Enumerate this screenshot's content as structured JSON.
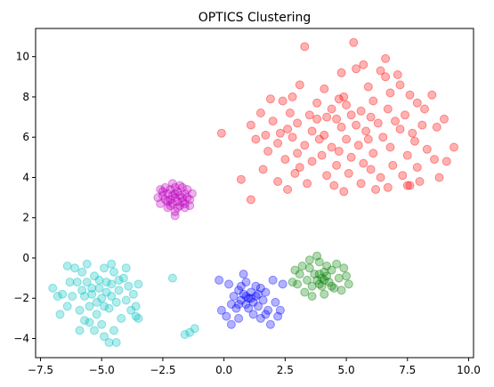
{
  "chart_data": {
    "type": "scatter",
    "title": "OPTICS Clustering",
    "xlabel": "",
    "ylabel": "",
    "xlim": [
      -7.7,
      10.2
    ],
    "ylim": [
      -4.95,
      11.4
    ],
    "xticks": [
      -7.5,
      -5.0,
      -2.5,
      0.0,
      2.5,
      5.0,
      7.5,
      10.0
    ],
    "xtick_labels": [
      "−7.5",
      "−5.0",
      "−2.5",
      "0.0",
      "2.5",
      "5.0",
      "7.5",
      "10.0"
    ],
    "yticks": [
      -4,
      -2,
      0,
      2,
      4,
      6,
      8,
      10
    ],
    "ytick_labels": [
      "−4",
      "−2",
      "0",
      "2",
      "4",
      "6",
      "8",
      "10"
    ],
    "grid": false,
    "legend": "none",
    "marker_alpha": 0.3,
    "series": [
      {
        "color": "#ff0000",
        "points": [
          [
            5.3,
            10.7
          ],
          [
            3.3,
            10.5
          ],
          [
            6.6,
            9.9
          ],
          [
            5.7,
            9.6
          ],
          [
            5.4,
            9.4
          ],
          [
            4.8,
            9.2
          ],
          [
            7.1,
            9.1
          ],
          [
            6.4,
            9.3
          ],
          [
            3.1,
            8.6
          ],
          [
            4.1,
            8.4
          ],
          [
            5.9,
            8.5
          ],
          [
            7.2,
            8.6
          ],
          [
            7.6,
            8.1
          ],
          [
            8.5,
            8.1
          ],
          [
            4.7,
            7.9
          ],
          [
            6.1,
            7.8
          ],
          [
            7.9,
            7.7
          ],
          [
            1.9,
            7.9
          ],
          [
            2.4,
            7.8
          ],
          [
            3.8,
            7.7
          ],
          [
            4.4,
            7.4
          ],
          [
            5.6,
            7.3
          ],
          [
            6.7,
            7.4
          ],
          [
            8.2,
            7.4
          ],
          [
            1.5,
            7.2
          ],
          [
            2.7,
            7.2
          ],
          [
            3.5,
            7.1
          ],
          [
            4.2,
            7.0
          ],
          [
            5.2,
            7.1
          ],
          [
            6.0,
            7.0
          ],
          [
            7.4,
            7.1
          ],
          [
            9.0,
            6.9
          ],
          [
            2.0,
            6.8
          ],
          [
            3.0,
            6.7
          ],
          [
            4.6,
            6.9
          ],
          [
            5.4,
            6.6
          ],
          [
            6.3,
            6.7
          ],
          [
            8.1,
            6.6
          ],
          [
            1.1,
            6.6
          ],
          [
            2.6,
            6.4
          ],
          [
            3.6,
            6.3
          ],
          [
            4.8,
            6.5
          ],
          [
            5.8,
            6.3
          ],
          [
            7.2,
            6.4
          ],
          [
            8.7,
            6.5
          ],
          [
            1.7,
            6.1
          ],
          [
            2.8,
            6.0
          ],
          [
            4.1,
            6.1
          ],
          [
            5.0,
            5.9
          ],
          [
            6.5,
            6.0
          ],
          [
            7.8,
            5.8
          ],
          [
            -0.1,
            6.2
          ],
          [
            1.3,
            5.9
          ],
          [
            2.2,
            5.7
          ],
          [
            3.3,
            5.6
          ],
          [
            4.4,
            5.5
          ],
          [
            5.5,
            5.6
          ],
          [
            6.8,
            5.5
          ],
          [
            8.3,
            5.4
          ],
          [
            9.4,
            5.5
          ],
          [
            1.8,
            5.3
          ],
          [
            3.0,
            5.2
          ],
          [
            4.0,
            5.1
          ],
          [
            5.2,
            5.0
          ],
          [
            6.1,
            5.2
          ],
          [
            7.5,
            5.1
          ],
          [
            8.6,
            4.9
          ],
          [
            2.5,
            4.9
          ],
          [
            3.6,
            4.8
          ],
          [
            4.6,
            4.6
          ],
          [
            5.7,
            4.7
          ],
          [
            6.9,
            4.6
          ],
          [
            7.9,
            4.5
          ],
          [
            1.6,
            4.4
          ],
          [
            2.9,
            4.2
          ],
          [
            4.2,
            4.1
          ],
          [
            5.1,
            4.2
          ],
          [
            6.4,
            4.0
          ],
          [
            7.3,
            4.1
          ],
          [
            8.8,
            4.0
          ],
          [
            0.7,
            3.9
          ],
          [
            2.2,
            3.8
          ],
          [
            3.4,
            3.7
          ],
          [
            4.5,
            3.6
          ],
          [
            5.6,
            3.7
          ],
          [
            6.7,
            3.5
          ],
          [
            7.6,
            3.6
          ],
          [
            1.1,
            2.9
          ],
          [
            2.6,
            3.4
          ],
          [
            4.9,
            3.3
          ],
          [
            6.2,
            3.4
          ],
          [
            7.5,
            3.6
          ],
          [
            8.0,
            3.8
          ],
          [
            9.1,
            4.8
          ],
          [
            3.8,
            6.9
          ],
          [
            4.9,
            8.0
          ],
          [
            6.8,
            8.2
          ],
          [
            2.8,
            8.0
          ],
          [
            5.0,
            7.6
          ],
          [
            7.0,
            6.8
          ],
          [
            3.9,
            5.9
          ],
          [
            2.3,
            6.2
          ],
          [
            6.0,
            4.4
          ],
          [
            4.7,
            5.3
          ],
          [
            3.1,
            4.5
          ],
          [
            5.9,
            5.9
          ],
          [
            7.7,
            6.2
          ],
          [
            6.6,
            9.0
          ]
        ]
      },
      {
        "color": "#bf00bf",
        "points": [
          [
            -2.0,
            3.0
          ],
          [
            -1.8,
            3.1
          ],
          [
            -2.2,
            2.9
          ],
          [
            -1.9,
            3.3
          ],
          [
            -2.1,
            2.7
          ],
          [
            -1.7,
            2.8
          ],
          [
            -2.3,
            3.2
          ],
          [
            -2.0,
            3.5
          ],
          [
            -1.6,
            3.2
          ],
          [
            -2.4,
            2.9
          ],
          [
            -1.9,
            2.5
          ],
          [
            -2.2,
            3.4
          ],
          [
            -1.7,
            3.5
          ],
          [
            -2.5,
            3.1
          ],
          [
            -1.5,
            3.0
          ],
          [
            -2.1,
            3.7
          ],
          [
            -2.6,
            2.7
          ],
          [
            -1.4,
            2.9
          ],
          [
            -2.0,
            2.3
          ],
          [
            -1.8,
            2.6
          ],
          [
            -2.3,
            2.5
          ],
          [
            -1.6,
            2.5
          ],
          [
            -2.4,
            3.5
          ],
          [
            -2.7,
            3.0
          ],
          [
            -1.3,
            3.2
          ],
          [
            -2.0,
            3.2
          ],
          [
            -1.9,
            2.8
          ],
          [
            -2.1,
            3.1
          ],
          [
            -1.7,
            3.0
          ],
          [
            -2.2,
            2.6
          ],
          [
            -1.5,
            3.4
          ],
          [
            -2.5,
            3.3
          ],
          [
            -1.8,
            3.6
          ],
          [
            -2.3,
            2.8
          ],
          [
            -1.6,
            2.7
          ],
          [
            -2.0,
            2.1
          ],
          [
            -2.6,
            3.4
          ],
          [
            -1.4,
            2.6
          ]
        ]
      },
      {
        "color": "#00bfbf",
        "points": [
          [
            -7.0,
            -1.5
          ],
          [
            -6.6,
            -1.8
          ],
          [
            -6.4,
            -0.4
          ],
          [
            -6.1,
            -0.5
          ],
          [
            -6.0,
            -1.2
          ],
          [
            -5.8,
            -0.7
          ],
          [
            -5.7,
            -1.9
          ],
          [
            -5.6,
            -0.3
          ],
          [
            -5.5,
            -2.4
          ],
          [
            -5.4,
            -1.5
          ],
          [
            -5.3,
            -0.9
          ],
          [
            -5.2,
            -2.8
          ],
          [
            -5.1,
            -1.1
          ],
          [
            -5.0,
            -2.0
          ],
          [
            -4.9,
            -0.5
          ],
          [
            -4.8,
            -1.7
          ],
          [
            -4.7,
            -2.5
          ],
          [
            -4.6,
            -1.3
          ],
          [
            -4.5,
            -0.7
          ],
          [
            -4.4,
            -2.2
          ],
          [
            -4.3,
            -1.6
          ],
          [
            -4.2,
            -3.0
          ],
          [
            -4.1,
            -1.0
          ],
          [
            -4.0,
            -2.1
          ],
          [
            -3.9,
            -1.4
          ],
          [
            -3.8,
            -2.6
          ],
          [
            -3.7,
            -1.8
          ],
          [
            -3.6,
            -2.4
          ],
          [
            -3.5,
            -1.3
          ],
          [
            -5.5,
            -3.2
          ],
          [
            -5.3,
            -3.6
          ],
          [
            -5.0,
            -3.3
          ],
          [
            -4.9,
            -3.9
          ],
          [
            -4.7,
            -4.2
          ],
          [
            -4.4,
            -4.2
          ],
          [
            -4.5,
            -3.6
          ],
          [
            -6.7,
            -2.8
          ],
          [
            -6.4,
            -2.4
          ],
          [
            -6.2,
            -1.9
          ],
          [
            -5.9,
            -2.6
          ],
          [
            -5.7,
            -3.1
          ],
          [
            -4.6,
            -0.3
          ],
          [
            -4.0,
            -0.5
          ],
          [
            -3.6,
            -2.9
          ],
          [
            -6.3,
            -1.2
          ],
          [
            -5.4,
            -1.8
          ],
          [
            -5.1,
            -1.5
          ],
          [
            -4.8,
            -1.2
          ],
          [
            -5.2,
            -2.2
          ],
          [
            -4.6,
            -1.9
          ],
          [
            -5.6,
            -1.2
          ],
          [
            -4.9,
            -2.4
          ],
          [
            -5.8,
            -1.6
          ],
          [
            -4.3,
            -1.1
          ],
          [
            -2.1,
            -1.0
          ],
          [
            -1.6,
            -3.8
          ],
          [
            -1.4,
            -3.7
          ],
          [
            -1.2,
            -3.5
          ],
          [
            -6.8,
            -1.9
          ],
          [
            -5.9,
            -3.6
          ],
          [
            -3.5,
            -3.0
          ]
        ]
      },
      {
        "color": "#0000ff",
        "points": [
          [
            1.0,
            -2.0
          ],
          [
            0.8,
            -1.8
          ],
          [
            1.2,
            -2.2
          ],
          [
            0.9,
            -2.3
          ],
          [
            1.1,
            -1.7
          ],
          [
            0.7,
            -2.1
          ],
          [
            1.3,
            -1.9
          ],
          [
            0.6,
            -1.6
          ],
          [
            1.4,
            -2.4
          ],
          [
            0.5,
            -2.5
          ],
          [
            1.5,
            -1.5
          ],
          [
            0.4,
            -1.9
          ],
          [
            1.6,
            -2.1
          ],
          [
            0.3,
            -2.3
          ],
          [
            1.7,
            -1.7
          ],
          [
            0.2,
            -1.3
          ],
          [
            1.8,
            -2.6
          ],
          [
            0.1,
            -2.9
          ],
          [
            2.0,
            -1.1
          ],
          [
            -0.1,
            -2.6
          ],
          [
            2.1,
            -2.2
          ],
          [
            0.9,
            -1.2
          ],
          [
            1.2,
            -2.8
          ],
          [
            0.6,
            -3.0
          ],
          [
            1.5,
            -3.0
          ],
          [
            2.3,
            -2.6
          ],
          [
            2.4,
            -1.3
          ],
          [
            -0.2,
            -1.1
          ],
          [
            1.9,
            -3.3
          ],
          [
            0.8,
            -0.8
          ],
          [
            2.2,
            -2.9
          ],
          [
            0.3,
            -3.3
          ],
          [
            1.0,
            -2.5
          ],
          [
            0.7,
            -1.4
          ],
          [
            1.3,
            -1.4
          ],
          [
            1.1,
            -2.0
          ],
          [
            0.9,
            -1.9
          ],
          [
            1.4,
            -1.8
          ],
          [
            0.6,
            -2.3
          ],
          [
            1.7,
            -2.8
          ]
        ]
      },
      {
        "color": "#008000",
        "points": [
          [
            4.0,
            -1.0
          ],
          [
            3.8,
            -1.1
          ],
          [
            4.2,
            -0.9
          ],
          [
            3.9,
            -1.3
          ],
          [
            4.1,
            -0.7
          ],
          [
            3.7,
            -0.8
          ],
          [
            4.3,
            -1.2
          ],
          [
            3.6,
            -1.4
          ],
          [
            4.4,
            -0.6
          ],
          [
            3.5,
            -0.5
          ],
          [
            4.5,
            -1.5
          ],
          [
            3.4,
            -1.1
          ],
          [
            4.6,
            -0.3
          ],
          [
            3.3,
            -1.7
          ],
          [
            4.7,
            -1.0
          ],
          [
            3.2,
            -0.4
          ],
          [
            4.8,
            -1.6
          ],
          [
            3.1,
            -0.8
          ],
          [
            4.9,
            -0.5
          ],
          [
            3.0,
            -1.3
          ],
          [
            5.0,
            -0.9
          ],
          [
            2.9,
            -0.6
          ],
          [
            5.1,
            -1.3
          ],
          [
            2.8,
            -1.2
          ],
          [
            3.9,
            -0.2
          ],
          [
            4.1,
            -1.8
          ],
          [
            3.8,
            0.1
          ],
          [
            4.2,
            -0.4
          ],
          [
            3.6,
            -1.9
          ],
          [
            4.4,
            -1.4
          ],
          [
            3.5,
            -0.1
          ],
          [
            4.0,
            -1.4
          ],
          [
            3.9,
            -0.8
          ],
          [
            4.1,
            -1.1
          ]
        ]
      }
    ]
  }
}
